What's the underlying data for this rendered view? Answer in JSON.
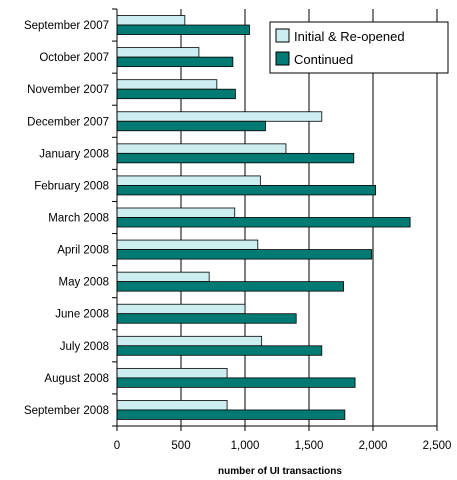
{
  "chart_data": {
    "type": "bar",
    "orientation": "horizontal",
    "categories": [
      "September 2007",
      "October 2007",
      "November 2007",
      "December 2007",
      "January 2008",
      "February 2008",
      "March 2008",
      "April 2008",
      "May 2008",
      "June 2008",
      "July 2008",
      "August 2008",
      "September 2008"
    ],
    "series": [
      {
        "name": "Initial & Re-opened",
        "color": "#cdeef0",
        "values": [
          530,
          640,
          780,
          1600,
          1320,
          1120,
          920,
          1100,
          720,
          1000,
          1130,
          860,
          860
        ]
      },
      {
        "name": "Continued",
        "color": "#007a73",
        "values": [
          1035,
          905,
          925,
          1160,
          1850,
          2020,
          2290,
          1990,
          1770,
          1400,
          1600,
          1860,
          1780
        ]
      }
    ],
    "xlabel": "number of UI transactions",
    "xlim": [
      0,
      2500
    ],
    "xticks": [
      0,
      500,
      1000,
      1500,
      2000,
      2500
    ],
    "xtick_labels": [
      "0",
      "500",
      "1,000",
      "1,500",
      "2,000",
      "2,500"
    ],
    "grid": "vertical",
    "legend": "top-right"
  }
}
